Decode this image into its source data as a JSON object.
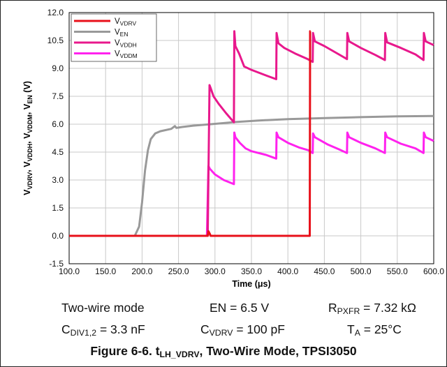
{
  "chart_data": {
    "type": "line",
    "xlabel": "Time (μs)",
    "ylabel": "V_VDRV, V_VDDH, V_VDDM, V_EN (V)",
    "x_ticks": [
      "100.0",
      "150.0",
      "200.0",
      "250.0",
      "300.0",
      "350.0",
      "400.0",
      "450.0",
      "500.0",
      "550.0",
      "600.0"
    ],
    "y_ticks": [
      "-1.5",
      "0.0",
      "1.5",
      "3.0",
      "4.5",
      "6.0",
      "7.5",
      "9.0",
      "10.5",
      "12.0"
    ],
    "xlim": [
      100,
      600
    ],
    "ylim": [
      -1.5,
      12
    ],
    "grid": true,
    "legend_position": "top-left",
    "series": [
      {
        "name": "VVDRV",
        "label_main": "V",
        "label_sub": "VDRV",
        "color": "#e8101a",
        "points": [
          [
            100,
            0
          ],
          [
            290,
            0
          ],
          [
            291,
            0.25
          ],
          [
            293,
            0.1
          ],
          [
            294,
            0
          ],
          [
            430,
            0
          ],
          [
            430.5,
            11
          ],
          [
            431,
            11
          ]
        ]
      },
      {
        "name": "VEN",
        "label_main": "V",
        "label_sub": "EN",
        "color": "#999999",
        "points": [
          [
            100,
            0
          ],
          [
            190,
            0
          ],
          [
            196,
            0.5
          ],
          [
            200,
            1.8
          ],
          [
            204,
            3.5
          ],
          [
            208,
            4.6
          ],
          [
            212,
            5.2
          ],
          [
            218,
            5.5
          ],
          [
            225,
            5.62
          ],
          [
            240,
            5.75
          ],
          [
            245,
            5.9
          ],
          [
            247,
            5.8
          ],
          [
            255,
            5.85
          ],
          [
            270,
            5.92
          ],
          [
            300,
            6.02
          ],
          [
            330,
            6.12
          ],
          [
            360,
            6.2
          ],
          [
            400,
            6.27
          ],
          [
            450,
            6.33
          ],
          [
            500,
            6.38
          ],
          [
            550,
            6.42
          ],
          [
            600,
            6.44
          ]
        ]
      },
      {
        "name": "VVDDH",
        "label_main": "V",
        "label_sub": "VDDH",
        "color": "#e8188c",
        "points": [
          [
            100,
            0
          ],
          [
            290,
            0
          ],
          [
            292.5,
            8.1
          ],
          [
            294,
            7.95
          ],
          [
            298,
            7.5
          ],
          [
            305,
            7.1
          ],
          [
            315,
            6.6
          ],
          [
            326,
            6.1
          ],
          [
            326.5,
            11
          ],
          [
            328,
            10.2
          ],
          [
            333,
            9.8
          ],
          [
            340,
            9.1
          ],
          [
            350,
            8.92
          ],
          [
            370,
            8.62
          ],
          [
            384,
            8.42
          ],
          [
            384.5,
            10.9
          ],
          [
            387,
            10.35
          ],
          [
            395,
            10.1
          ],
          [
            410,
            9.8
          ],
          [
            426,
            9.52
          ],
          [
            434,
            9.35
          ],
          [
            434.5,
            10.9
          ],
          [
            437,
            10.45
          ],
          [
            450,
            10.2
          ],
          [
            470,
            9.75
          ],
          [
            481,
            9.5
          ],
          [
            481.5,
            10.9
          ],
          [
            484,
            10.45
          ],
          [
            500,
            10.1
          ],
          [
            520,
            9.72
          ],
          [
            533,
            9.45
          ],
          [
            533.5,
            10.9
          ],
          [
            536,
            10.4
          ],
          [
            555,
            10.1
          ],
          [
            575,
            9.75
          ],
          [
            586,
            9.45
          ],
          [
            586.5,
            10.9
          ],
          [
            589,
            10.45
          ],
          [
            600,
            10.25
          ]
        ]
      },
      {
        "name": "VVDDM",
        "label_main": "V",
        "label_sub": "VDDM",
        "color": "#ff22ee",
        "points": [
          [
            100,
            0
          ],
          [
            289,
            0
          ],
          [
            291,
            3.75
          ],
          [
            293,
            3.6
          ],
          [
            300,
            3.3
          ],
          [
            312,
            3.0
          ],
          [
            326,
            2.78
          ],
          [
            326.5,
            5.55
          ],
          [
            328,
            5.3
          ],
          [
            334,
            5.0
          ],
          [
            342,
            4.7
          ],
          [
            350,
            4.55
          ],
          [
            370,
            4.35
          ],
          [
            384,
            4.15
          ],
          [
            384.5,
            5.55
          ],
          [
            387,
            5.3
          ],
          [
            400,
            5.0
          ],
          [
            415,
            4.75
          ],
          [
            428,
            4.6
          ],
          [
            434,
            4.45
          ],
          [
            434.5,
            5.5
          ],
          [
            437,
            5.3
          ],
          [
            455,
            4.9
          ],
          [
            470,
            4.65
          ],
          [
            481,
            4.45
          ],
          [
            481.5,
            5.55
          ],
          [
            484,
            5.3
          ],
          [
            500,
            5.0
          ],
          [
            520,
            4.7
          ],
          [
            533,
            4.45
          ],
          [
            533.5,
            5.55
          ],
          [
            536,
            5.3
          ],
          [
            555,
            4.95
          ],
          [
            575,
            4.7
          ],
          [
            586,
            4.45
          ],
          [
            586.5,
            5.55
          ],
          [
            589,
            5.3
          ],
          [
            600,
            5.1
          ]
        ]
      }
    ]
  },
  "conditions": {
    "mode": "Two-wire mode",
    "en": "EN = 6.5 V",
    "rpxfr_main": "R",
    "rpxfr_sub": "PXFR",
    "rpxfr_val": " = 7.32 kΩ",
    "cdiv_main": "C",
    "cdiv_sub": "DIV1,2",
    "cdiv_val": " = 3.3 nF",
    "cvdrv_main": "C",
    "cvdrv_sub": "VDRV",
    "cvdrv_val": " = 100 pF",
    "ta_main": "T",
    "ta_sub": "A",
    "ta_val": " = 25°C"
  },
  "caption": {
    "prefix": "Figure 6-6. t",
    "sub": "LH_VDRV",
    "suffix": ", Two-Wire Mode, TPSI3050"
  }
}
